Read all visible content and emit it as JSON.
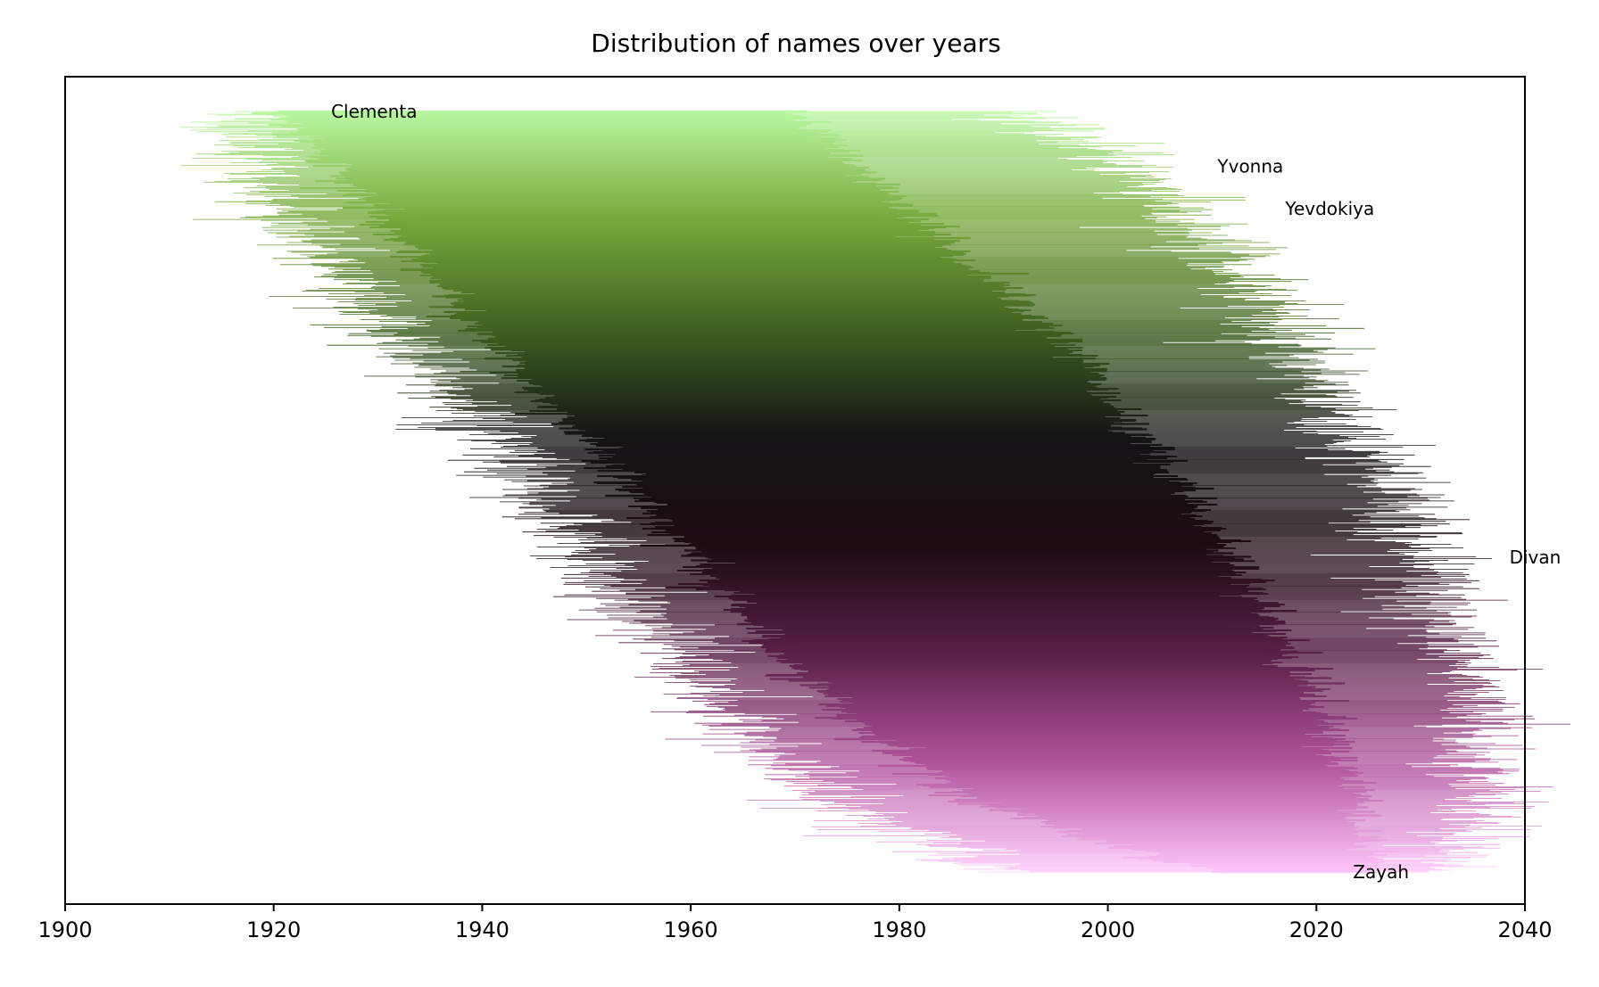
{
  "chart_data": {
    "type": "bar",
    "orientation": "horizontal-ranges",
    "title": "Distribution of names over years",
    "xlabel": "",
    "ylabel": "",
    "xlim": [
      1900,
      2040
    ],
    "x_ticks": [
      "1900",
      "1920",
      "1940",
      "1960",
      "1980",
      "2000",
      "2020",
      "2040"
    ],
    "y_ticks": [],
    "grid": false,
    "colormap": [
      "#b9f8a0",
      "#77a83c",
      "#3e6220",
      "#141414",
      "#1c0c12",
      "#5a2048",
      "#b0549c",
      "#ffc4fb"
    ],
    "series": [
      {
        "values_description": "one horizontal range per name, top to bottom, sorted by central year",
        "envelope": [
          {
            "position": 0.0,
            "left": 1917,
            "core_left": 1921,
            "core_right": 1969,
            "right": 1992
          },
          {
            "position": 0.1,
            "left": 1919,
            "core_left": 1928,
            "core_right": 1978,
            "right": 2005
          },
          {
            "position": 0.2,
            "left": 1925,
            "core_left": 1935,
            "core_right": 1986,
            "right": 2011
          },
          {
            "position": 0.3,
            "left": 1932,
            "core_left": 1941,
            "core_right": 1995,
            "right": 2018
          },
          {
            "position": 0.4,
            "left": 1939,
            "core_left": 1948,
            "core_right": 2001,
            "right": 2022
          },
          {
            "position": 0.5,
            "left": 1945,
            "core_left": 1955,
            "core_right": 2007,
            "right": 2027
          },
          {
            "position": 0.6,
            "left": 1951,
            "core_left": 1962,
            "core_right": 2012,
            "right": 2030
          },
          {
            "position": 0.7,
            "left": 1958,
            "core_left": 1968,
            "core_right": 2016,
            "right": 2033
          },
          {
            "position": 0.8,
            "left": 1964,
            "core_left": 1976,
            "core_right": 2020,
            "right": 2036
          },
          {
            "position": 0.9,
            "left": 1972,
            "core_left": 1986,
            "core_right": 2023,
            "right": 2036
          },
          {
            "position": 1.0,
            "left": 1990,
            "core_left": 2010,
            "core_right": 2025,
            "right": 2033
          }
        ]
      }
    ],
    "annotations": [
      {
        "label": "Clementa",
        "year": 1925,
        "position": 0.0
      },
      {
        "label": "Yvonna",
        "year": 2010,
        "position": 0.072
      },
      {
        "label": "Yevdokiya",
        "year": 2016.5,
        "position": 0.128
      },
      {
        "label": "Divan",
        "year": 2038,
        "position": 0.586
      },
      {
        "label": "Zayah",
        "year": 2023,
        "position": 1.0
      }
    ]
  }
}
